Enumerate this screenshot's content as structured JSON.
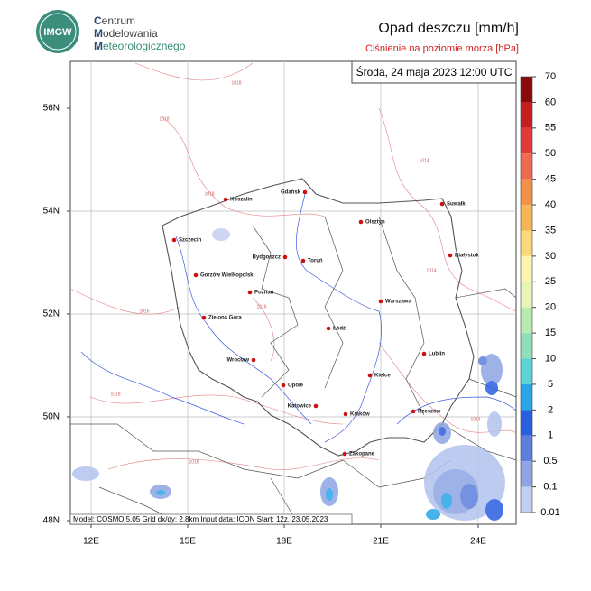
{
  "header": {
    "logo": "IMGW",
    "org": [
      "Centrum",
      "Modelowania",
      "Meteorologicznego"
    ],
    "title": "Opad deszczu [mm/h]",
    "subtitle": "Ciśnienie na poziomie morza [hPa]"
  },
  "valid_time": "Środa, 24 maja 2023 12:00 UTC",
  "model_info": "Model: COSMO 5.05  Grid dx/dy: 2.8km  Input data: ICON  Start: 12z, 23.05.2023",
  "lat_labels": [
    "56N",
    "54N",
    "52N",
    "50N",
    "48N"
  ],
  "lon_labels": [
    "12E",
    "15E",
    "18E",
    "21E",
    "24E"
  ],
  "cities": [
    "Gdańsk",
    "Koszalin",
    "Suwałki",
    "Olsztyn",
    "Szczecin",
    "Białystok",
    "Bydgoszcz",
    "Toruń",
    "Gorzów Wielkopolski",
    "Poznań",
    "Warszawa",
    "Zielona Góra",
    "Łódź",
    "Lublin",
    "Wrocław",
    "Kielce",
    "Opole",
    "Katowice",
    "Rzeszów",
    "Kraków",
    "Zakopane"
  ],
  "isobar_labels": [
    "1018",
    "1018",
    "1014",
    "1018",
    "1016",
    "1014",
    "1016",
    "1018",
    "1014",
    "1018"
  ],
  "colorbar": {
    "levels": [
      70,
      60,
      55,
      50,
      45,
      40,
      35,
      30,
      25,
      20,
      15,
      10,
      5,
      2,
      1,
      0.5,
      0.1,
      0.01
    ],
    "colors": [
      "#8a0a0a",
      "#c41e1e",
      "#e03a3a",
      "#ee6a50",
      "#f3904a",
      "#f6b655",
      "#f9d97a",
      "#fbf5b0",
      "#e8f4b8",
      "#b8ebb0",
      "#8fe0b8",
      "#5cd3d6",
      "#28a6e8",
      "#2a5fe0",
      "#5e7fde",
      "#8fa5e3",
      "#c3cff1"
    ]
  }
}
